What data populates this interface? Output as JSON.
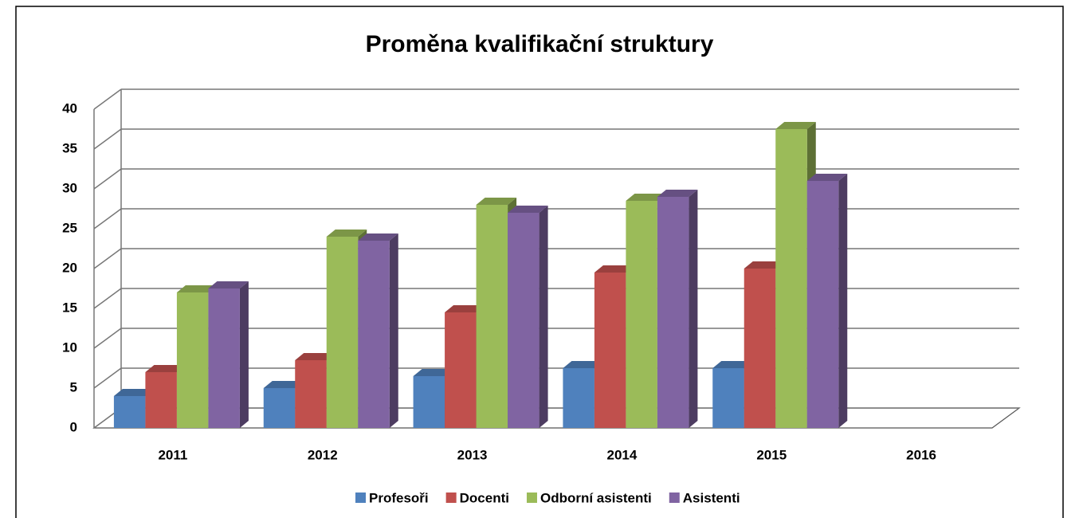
{
  "chart_data": {
    "type": "bar3d",
    "title": "Proměna kvalifikační struktury",
    "categories": [
      "2011",
      "2012",
      "2013",
      "2014",
      "2015",
      "2016"
    ],
    "series": [
      {
        "name": "Profesoři",
        "color": "#4f81bd",
        "values": [
          4,
          5,
          6.5,
          7.5,
          7.5,
          null
        ]
      },
      {
        "name": "Docenti",
        "color": "#c0504d",
        "values": [
          7,
          8.5,
          14.5,
          19.5,
          20,
          null
        ]
      },
      {
        "name": "Odborní asistenti",
        "color": "#9bbb59",
        "values": [
          17,
          24,
          28,
          28.5,
          37.5,
          null
        ]
      },
      {
        "name": "Asistenti",
        "color": "#8064a2",
        "values": [
          17.5,
          23.5,
          27,
          29,
          31,
          null
        ]
      }
    ],
    "ylim": [
      0,
      40
    ],
    "yticks": [
      0,
      5,
      10,
      15,
      20,
      25,
      30,
      35,
      40
    ],
    "grid": true,
    "legend": "bottom"
  }
}
